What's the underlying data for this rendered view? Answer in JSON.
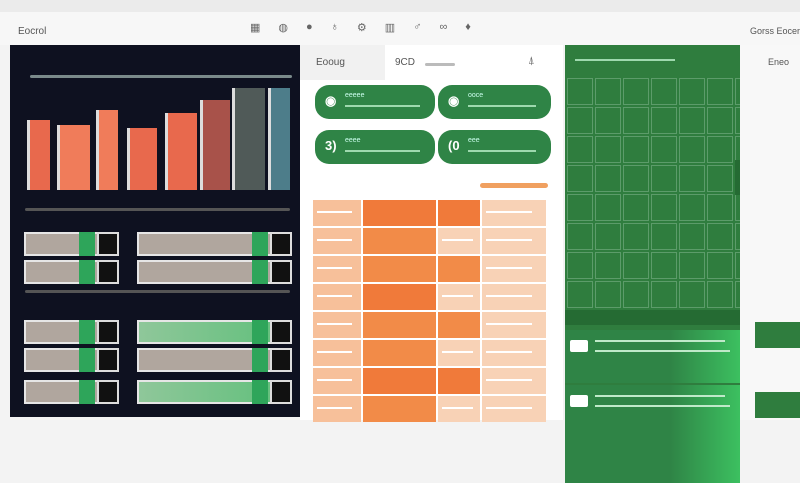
{
  "header": {
    "title": "Eocrol",
    "right_label": "Gorss Eocer",
    "icons": [
      "grid-icon",
      "globe-icon",
      "circle-icon",
      "pin-icon",
      "settings-icon",
      "chart-icon",
      "person-icon",
      "link-icon",
      "drop-icon"
    ]
  },
  "middle": {
    "tab_label": "Eooug",
    "value_label": "9CD",
    "cards": [
      {
        "icon": "toggle-icon",
        "label": "eeeee"
      },
      {
        "icon": "info-icon",
        "label": "ooce"
      },
      {
        "icon": "number-icon",
        "glyph": "3)",
        "label": "eeee"
      },
      {
        "icon": "number-icon",
        "glyph": "(0",
        "label": "eee"
      }
    ]
  },
  "right_panel": {
    "label": "Eneo"
  },
  "colors": {
    "dark": "#0e1120",
    "green": "#2f7d3e",
    "orange": "#f08a45",
    "peach": "#f7c9a8"
  }
}
